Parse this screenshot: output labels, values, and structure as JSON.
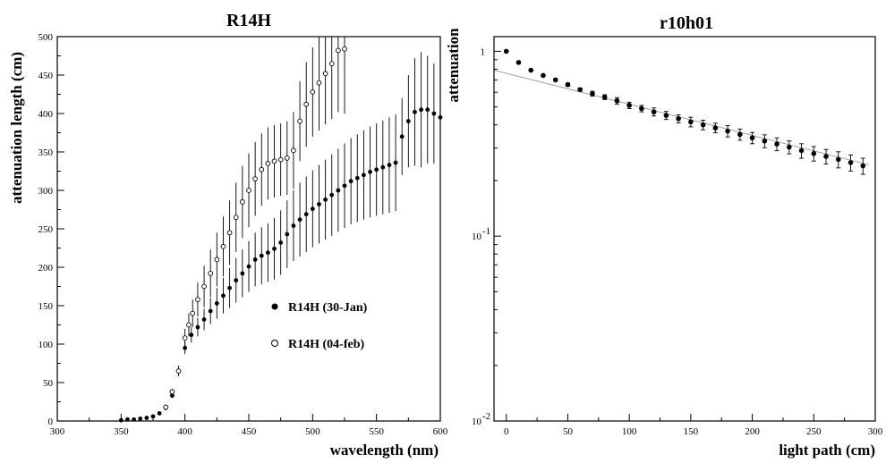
{
  "chart_data": [
    {
      "type": "scatter",
      "title": "R14H",
      "xlabel": "wavelength (nm)",
      "ylabel": "attenuation length (cm)",
      "xlim": [
        300,
        600
      ],
      "ylim": [
        0,
        500
      ],
      "xticks": [
        300,
        350,
        400,
        450,
        500,
        550,
        600
      ],
      "yticks": [
        0,
        50,
        100,
        150,
        200,
        250,
        300,
        350,
        400,
        450,
        500
      ],
      "legend_position": "center-right",
      "series": [
        {
          "name": "R14H (30-Jan)",
          "marker": "filled-circle",
          "x": [
            350,
            355,
            360,
            365,
            370,
            375,
            380,
            385,
            390,
            395,
            400,
            405,
            410,
            415,
            420,
            425,
            430,
            435,
            440,
            445,
            450,
            455,
            460,
            465,
            470,
            475,
            480,
            485,
            490,
            495,
            500,
            505,
            510,
            515,
            520,
            525,
            530,
            535,
            540,
            545,
            550,
            555,
            560,
            565,
            570,
            575,
            580,
            585,
            590,
            595,
            600
          ],
          "y": [
            1,
            2,
            2,
            3,
            4,
            6,
            10,
            17,
            33,
            65,
            95,
            112,
            122,
            132,
            143,
            153,
            163,
            173,
            183,
            192,
            201,
            210,
            215,
            219,
            224,
            232,
            243,
            254,
            262,
            269,
            276,
            282,
            288,
            294,
            300,
            306,
            312,
            316,
            320,
            324,
            327,
            330,
            333,
            336,
            370,
            390,
            402,
            405,
            405,
            400,
            395
          ],
          "y_err": [
            0,
            0,
            0,
            0,
            1,
            1,
            1,
            2,
            3,
            5,
            8,
            10,
            12,
            14,
            17,
            20,
            23,
            26,
            29,
            31,
            33,
            35,
            37,
            38,
            40,
            42,
            44,
            46,
            48,
            49,
            50,
            51,
            52,
            53,
            54,
            55,
            56,
            57,
            58,
            59,
            60,
            61,
            62,
            63,
            50,
            60,
            70,
            75,
            70,
            65,
            60
          ]
        },
        {
          "name": "R14H (04-feb)",
          "marker": "open-circle",
          "x": [
            385,
            390,
            395,
            400,
            403,
            406,
            410,
            415,
            420,
            425,
            430,
            435,
            440,
            445,
            450,
            455,
            460,
            465,
            470,
            475,
            480,
            485,
            490,
            495,
            500,
            505,
            510,
            515,
            520,
            525
          ],
          "y": [
            18,
            38,
            65,
            108,
            125,
            140,
            158,
            175,
            192,
            210,
            227,
            245,
            265,
            285,
            300,
            315,
            327,
            335,
            338,
            340,
            342,
            352,
            390,
            412,
            428,
            440,
            452,
            465,
            482,
            484
          ],
          "y_err": [
            2,
            4,
            7,
            12,
            15,
            18,
            22,
            27,
            31,
            35,
            39,
            42,
            45,
            47,
            48,
            48,
            47,
            47,
            47,
            47,
            48,
            50,
            52,
            55,
            58,
            62,
            66,
            72,
            80,
            84
          ]
        }
      ]
    },
    {
      "type": "scatter",
      "title": "r10h01",
      "xlabel": "light path (cm)",
      "ylabel": "attenuation",
      "yscale": "log",
      "xlim": [
        -10,
        300
      ],
      "ylim": [
        0.01,
        1.2
      ],
      "xticks": [
        0,
        50,
        100,
        150,
        200,
        250,
        300
      ],
      "yticks": [
        {
          "value": 1,
          "label": "1"
        },
        {
          "value": 0.1,
          "label": "10",
          "exp": "-1"
        },
        {
          "value": 0.01,
          "label": "10",
          "exp": "-2"
        }
      ],
      "fit_line": {
        "x": [
          -10,
          295
        ],
        "y": [
          0.79,
          0.243
        ]
      },
      "series": [
        {
          "name": "",
          "marker": "filled-circle",
          "x": [
            0,
            10,
            20,
            30,
            40,
            50,
            60,
            70,
            80,
            90,
            100,
            110,
            120,
            130,
            140,
            150,
            160,
            170,
            180,
            190,
            200,
            210,
            220,
            230,
            240,
            250,
            260,
            270,
            280,
            290
          ],
          "y": [
            1.0,
            0.87,
            0.79,
            0.74,
            0.7,
            0.66,
            0.62,
            0.59,
            0.565,
            0.54,
            0.51,
            0.49,
            0.47,
            0.45,
            0.432,
            0.415,
            0.4,
            0.385,
            0.37,
            0.355,
            0.34,
            0.327,
            0.315,
            0.303,
            0.29,
            0.28,
            0.27,
            0.26,
            0.25,
            0.24
          ],
          "y_err_frac": [
            0,
            0,
            0,
            0.01,
            0.01,
            0.02,
            0.02,
            0.03,
            0.03,
            0.04,
            0.04,
            0.04,
            0.05,
            0.05,
            0.05,
            0.06,
            0.06,
            0.06,
            0.07,
            0.07,
            0.07,
            0.08,
            0.08,
            0.08,
            0.09,
            0.09,
            0.09,
            0.1,
            0.1,
            0.1
          ]
        }
      ]
    }
  ]
}
